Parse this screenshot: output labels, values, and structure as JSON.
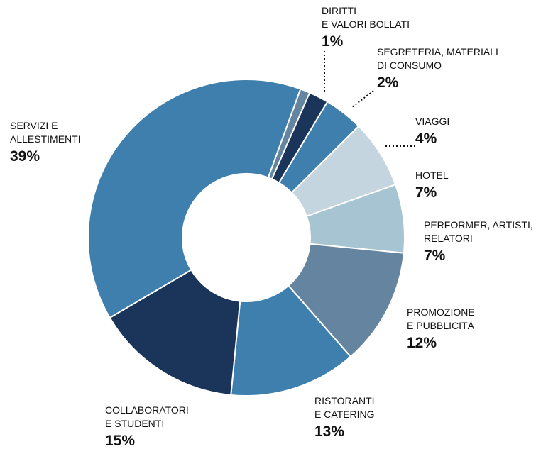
{
  "chart_data": {
    "type": "donut",
    "categories": [
      [
        "DIRITTI",
        "E VALORI BOLLATI"
      ],
      [
        "SEGRETERIA, MATERIALI",
        "DI CONSUMO"
      ],
      [
        "VIAGGI"
      ],
      [
        "HOTEL"
      ],
      [
        "PERFORMER, ARTISTI,",
        "RELATORI"
      ],
      [
        "PROMOZIONE",
        "E PUBBLICITÀ"
      ],
      [
        "RISTORANTI",
        "E CATERING"
      ],
      [
        "COLLABORATORI",
        "E STUDENTI"
      ],
      [
        "SERVIZI E",
        "ALLESTIMENTI"
      ]
    ],
    "values": [
      1,
      2,
      4,
      7,
      7,
      12,
      13,
      15,
      39
    ],
    "value_labels": [
      "1%",
      "2%",
      "4%",
      "7%",
      "7%",
      "12%",
      "13%",
      "15%",
      "39%"
    ],
    "colors": [
      "#65849f",
      "#1b355a",
      "#3f7fae",
      "#c5d5df",
      "#a7c4d2",
      "#65849f",
      "#3f7fae",
      "#1b355a",
      "#3f7fae"
    ]
  }
}
